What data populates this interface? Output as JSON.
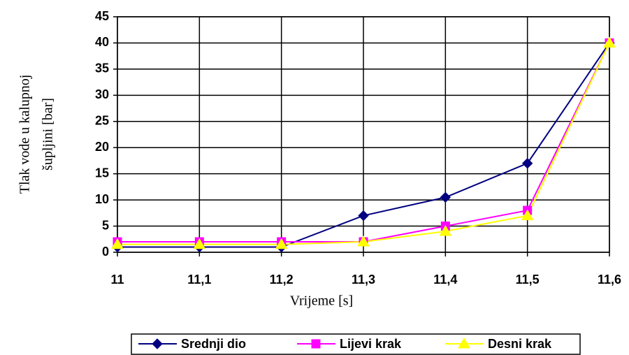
{
  "chart_data": {
    "type": "line",
    "x_label": "Vrijeme [s]",
    "y_label": [
      "Tlak vode u kalupnoj",
      "šupljini [bar]"
    ],
    "categories": [
      "11",
      "11,1",
      "11,2",
      "11,3",
      "11,4",
      "11,5",
      "11,6"
    ],
    "series": [
      {
        "name": "Srednji dio",
        "color": "#000080",
        "marker": "diamond",
        "values": [
          1,
          1,
          1,
          7,
          10.5,
          17,
          40
        ]
      },
      {
        "name": "Lijevi krak",
        "color": "#ff00ff",
        "marker": "square",
        "values": [
          2,
          2,
          2,
          2,
          5,
          8,
          40
        ]
      },
      {
        "name": "Desni krak",
        "color": "#ffff00",
        "marker": "triangle",
        "values": [
          1.5,
          1.5,
          1.5,
          2,
          4,
          7,
          40
        ]
      }
    ],
    "ylim": [
      0,
      45
    ],
    "yticks": [
      0,
      5,
      10,
      15,
      20,
      25,
      30,
      35,
      40,
      45
    ],
    "grid": true
  }
}
